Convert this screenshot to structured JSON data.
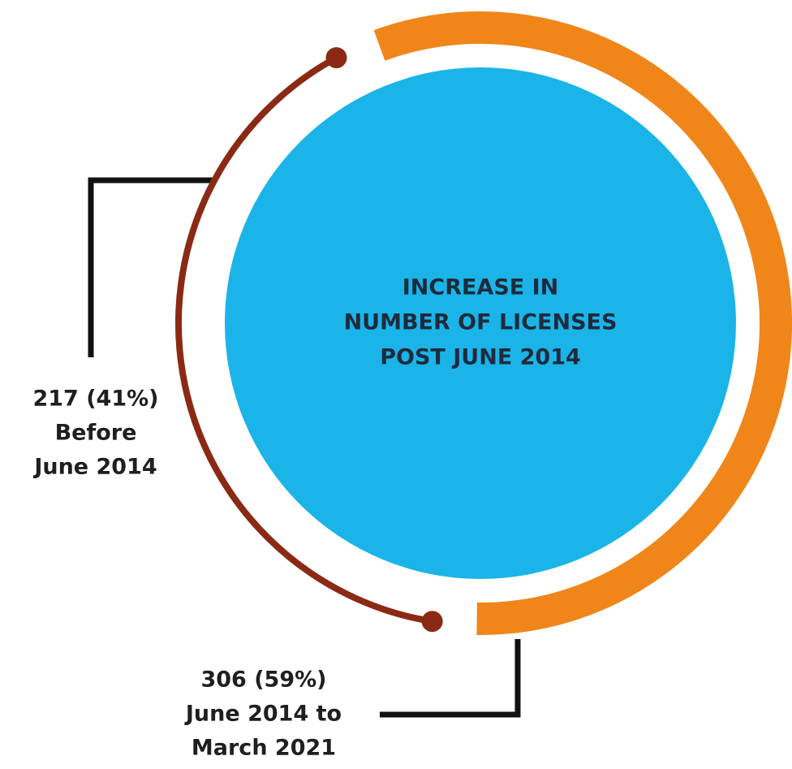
{
  "chart_data": {
    "type": "donut",
    "title": [
      "INCREASE IN",
      "NUMBER OF LICENSES",
      "POST JUNE 2014"
    ],
    "categories": [
      [
        "Before",
        "June 2014"
      ],
      [
        "June 2014 to",
        "March 2021"
      ]
    ],
    "values": [
      217,
      306
    ],
    "shares": [
      41,
      59
    ],
    "value_labels": [
      "217 (41%)",
      "306 (59%)"
    ],
    "colors": [
      "#8b2a14",
      "#f0861a"
    ],
    "center_color": "#1bb4e8"
  }
}
